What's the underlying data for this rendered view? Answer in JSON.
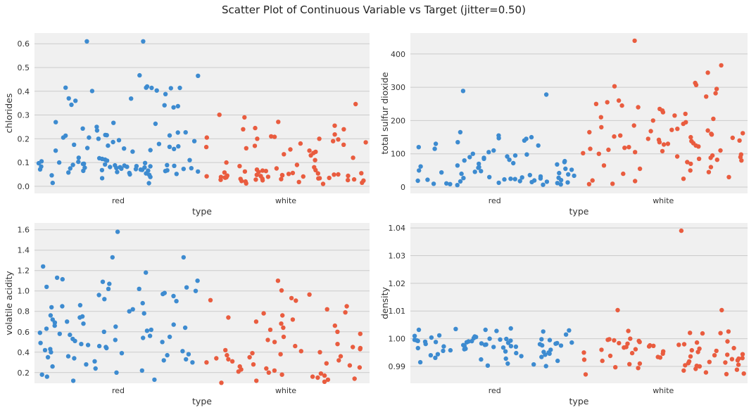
{
  "chart_data": [
    {
      "type": "scatter",
      "title": "Scatter Plot of Continuous Variable vs Target (jitter=0.50)",
      "xlabel": "type",
      "ylabel": "chlorides",
      "categories": [
        "red",
        "white"
      ],
      "ylim": [
        -0.03,
        0.645
      ],
      "yticks": [
        0.0,
        0.1,
        0.2,
        0.3,
        0.4,
        0.5,
        0.6
      ],
      "ytick_labels": [
        "0.0",
        "0.1",
        "0.2",
        "0.3",
        "0.4",
        "0.5",
        "0.6"
      ],
      "grid": true,
      "jitter": 0.5,
      "series": [
        {
          "category": "red",
          "color": "#3d8bd0",
          "values": [
            0.61,
            0.61,
            0.467,
            0.465,
            0.42,
            0.415,
            0.415,
            0.414,
            0.414,
            0.413,
            0.403,
            0.401,
            0.388,
            0.37,
            0.369,
            0.36,
            0.343,
            0.341,
            0.337,
            0.332,
            0.27,
            0.267,
            0.263,
            0.25,
            0.243,
            0.235,
            0.227,
            0.226,
            0.216,
            0.215,
            0.214,
            0.213,
            0.205,
            0.205,
            0.2,
            0.194,
            0.19,
            0.186,
            0.178,
            0.175,
            0.171,
            0.168,
            0.166,
            0.161,
            0.159,
            0.157,
            0.152,
            0.15,
            0.146,
            0.014,
            0.013,
            0.034,
            0.039,
            0.12,
            0.118,
            0.115,
            0.112,
            0.11,
            0.108,
            0.105,
            0.103,
            0.1,
            0.098,
            0.097,
            0.095,
            0.094,
            0.092,
            0.09,
            0.089,
            0.088,
            0.087,
            0.086,
            0.085,
            0.084,
            0.083,
            0.082,
            0.081,
            0.08,
            0.079,
            0.078,
            0.077,
            0.076,
            0.075,
            0.074,
            0.073,
            0.072,
            0.071,
            0.07,
            0.069,
            0.068,
            0.067,
            0.066,
            0.065,
            0.064,
            0.062,
            0.06,
            0.058,
            0.056,
            0.054,
            0.052,
            0.05,
            0.048,
            0.046
          ]
        },
        {
          "category": "white",
          "color": "#e95c3f",
          "values": [
            0.346,
            0.301,
            0.29,
            0.271,
            0.255,
            0.245,
            0.24,
            0.24,
            0.218,
            0.21,
            0.208,
            0.205,
            0.2,
            0.2,
            0.197,
            0.19,
            0.185,
            0.18,
            0.175,
            0.17,
            0.165,
            0.16,
            0.155,
            0.15,
            0.145,
            0.14,
            0.135,
            0.13,
            0.12,
            0.11,
            0.1,
            0.09,
            0.085,
            0.08,
            0.075,
            0.07,
            0.068,
            0.066,
            0.064,
            0.062,
            0.06,
            0.058,
            0.056,
            0.055,
            0.054,
            0.052,
            0.05,
            0.049,
            0.048,
            0.047,
            0.046,
            0.045,
            0.044,
            0.043,
            0.042,
            0.041,
            0.04,
            0.039,
            0.038,
            0.037,
            0.036,
            0.035,
            0.034,
            0.033,
            0.032,
            0.031,
            0.03,
            0.029,
            0.028,
            0.027,
            0.026,
            0.025,
            0.024,
            0.022,
            0.02,
            0.018,
            0.015,
            0.012,
            0.01
          ]
        }
      ]
    },
    {
      "type": "scatter",
      "xlabel": "type",
      "ylabel": "total sulfur dioxide",
      "categories": [
        "red",
        "white"
      ],
      "ylim": [
        -19,
        463
      ],
      "yticks": [
        0,
        100,
        200,
        300,
        400
      ],
      "ytick_labels": [
        "0",
        "100",
        "200",
        "300",
        "400"
      ],
      "grid": true,
      "jitter": 0.5,
      "series": [
        {
          "category": "red",
          "color": "#3d8bd0",
          "values": [
            289,
            278,
            165,
            155,
            150,
            147,
            145,
            140,
            135,
            130,
            125,
            120,
            115,
            110,
            105,
            100,
            98,
            95,
            92,
            90,
            88,
            85,
            82,
            80,
            78,
            75,
            72,
            70,
            68,
            65,
            62,
            60,
            58,
            55,
            52,
            50,
            48,
            46,
            44,
            42,
            40,
            38,
            36,
            34,
            32,
            30,
            29,
            28,
            27,
            26,
            25,
            24,
            23,
            22,
            21,
            20,
            19,
            18,
            17,
            16,
            15,
            14,
            13,
            12,
            11,
            10,
            9,
            8,
            7,
            6
          ]
        },
        {
          "category": "white",
          "color": "#e95c3f",
          "values": [
            440,
            366,
            344,
            313,
            307,
            303,
            295,
            282,
            272,
            260,
            255,
            250,
            245,
            240,
            235,
            230,
            20,
            18,
            25,
            30,
            10,
            9,
            40,
            45,
            225,
            220,
            215,
            210,
            205,
            200,
            195,
            190,
            185,
            180,
            175,
            172,
            170,
            168,
            165,
            162,
            160,
            158,
            155,
            152,
            150,
            148,
            145,
            142,
            140,
            138,
            135,
            132,
            130,
            128,
            125,
            122,
            120,
            118,
            115,
            112,
            110,
            108,
            105,
            102,
            100,
            98,
            95,
            92,
            90,
            88,
            85,
            82,
            80,
            75,
            70,
            65,
            60,
            55,
            50
          ]
        }
      ]
    },
    {
      "type": "scatter",
      "xlabel": "type",
      "ylabel": "volatile acidity",
      "categories": [
        "red",
        "white"
      ],
      "ylim": [
        0.095,
        1.667
      ],
      "yticks": [
        0.2,
        0.4,
        0.6,
        0.8,
        1.0,
        1.2,
        1.4,
        1.6
      ],
      "ytick_labels": [
        "0.2",
        "0.4",
        "0.6",
        "0.8",
        "1.0",
        "1.2",
        "1.4",
        "1.6"
      ],
      "grid": true,
      "jitter": 0.5,
      "series": [
        {
          "category": "red",
          "color": "#3d8bd0",
          "values": [
            1.58,
            1.33,
            1.33,
            1.24,
            1.18,
            1.13,
            1.115,
            1.1,
            1.09,
            1.07,
            1.04,
            1.035,
            1.02,
            1.02,
            1.0,
            0.98,
            0.97,
            0.96,
            0.12,
            0.13,
            0.16,
            0.18,
            0.95,
            0.92,
            0.9,
            0.88,
            0.86,
            0.85,
            0.84,
            0.82,
            0.8,
            0.78,
            0.76,
            0.75,
            0.74,
            0.72,
            0.7,
            0.69,
            0.68,
            0.67,
            0.66,
            0.65,
            0.64,
            0.63,
            0.62,
            0.61,
            0.6,
            0.59,
            0.58,
            0.57,
            0.56,
            0.55,
            0.54,
            0.53,
            0.52,
            0.51,
            0.5,
            0.49,
            0.48,
            0.47,
            0.46,
            0.45,
            0.44,
            0.43,
            0.42,
            0.41,
            0.4,
            0.39,
            0.38,
            0.37,
            0.36,
            0.35,
            0.34,
            0.33,
            0.32,
            0.31,
            0.3,
            0.28,
            0.26,
            0.24,
            0.22,
            0.2
          ]
        },
        {
          "category": "white",
          "color": "#e95c3f",
          "values": [
            1.1,
            1.005,
            0.965,
            0.93,
            0.91,
            0.905,
            0.85,
            0.82,
            0.79,
            0.78,
            0.76,
            0.74,
            0.72,
            0.7,
            0.68,
            0.66,
            0.64,
            0.62,
            0.6,
            0.58,
            0.55,
            0.52,
            0.5,
            0.48,
            0.46,
            0.45,
            0.44,
            0.43,
            0.42,
            0.41,
            0.4,
            0.39,
            0.38,
            0.37,
            0.36,
            0.35,
            0.34,
            0.33,
            0.32,
            0.31,
            0.3,
            0.29,
            0.28,
            0.27,
            0.26,
            0.25,
            0.24,
            0.23,
            0.22,
            0.21,
            0.2,
            0.19,
            0.18,
            0.17,
            0.16,
            0.15,
            0.14,
            0.13,
            0.12,
            0.11,
            0.1
          ]
        }
      ]
    },
    {
      "type": "scatter",
      "xlabel": "type",
      "ylabel": "density",
      "categories": [
        "red",
        "white"
      ],
      "ylim": [
        0.9839,
        1.0418
      ],
      "yticks": [
        0.99,
        1.0,
        1.01,
        1.02,
        1.03,
        1.04
      ],
      "ytick_labels": [
        "0.99",
        "1.00",
        "1.01",
        "1.02",
        "1.03",
        "1.04"
      ],
      "grid": true,
      "jitter": 0.5,
      "series": [
        {
          "category": "red",
          "color": "#3d8bd0",
          "values": [
            1.0037,
            1.0035,
            1.0032,
            1.0032,
            1.003,
            1.0028,
            1.0026,
            0.9901,
            0.9903,
            0.9907,
            0.991,
            0.9915,
            1.0015,
            1.0012,
            1.001,
            1.0008,
            1.0006,
            1.0004,
            1.0002,
            1.0,
            0.9999,
            0.9998,
            0.9997,
            0.9996,
            0.9995,
            0.9994,
            0.9993,
            0.9992,
            0.9991,
            0.999,
            0.9989,
            0.9988,
            0.9987,
            0.9986,
            0.9985,
            0.9984,
            0.9983,
            0.9982,
            0.9981,
            0.998,
            0.9979,
            0.9978,
            0.9977,
            0.9976,
            0.9975,
            0.9974,
            0.9973,
            0.9972,
            0.9971,
            0.997,
            0.9968,
            0.9966,
            0.9964,
            0.9962,
            0.996,
            0.9958,
            0.9956,
            0.9954,
            0.9952,
            0.995,
            0.9948,
            0.9946,
            0.9944,
            0.9942,
            0.994,
            0.9937,
            0.9934,
            0.9931,
            0.9928,
            0.9925,
            0.992
          ]
        },
        {
          "category": "white",
          "color": "#e95c3f",
          "values": [
            1.03898,
            1.0103,
            1.0103,
            1.0028,
            1.0026,
            1.0021,
            1.002,
            1.0019,
            0.9871,
            0.9872,
            0.9874,
            0.9878,
            1.0,
            0.9998,
            0.9996,
            0.9994,
            0.9992,
            0.999,
            0.9988,
            0.9986,
            0.9984,
            0.9982,
            0.998,
            0.9978,
            0.9976,
            0.9974,
            0.9972,
            0.997,
            0.9968,
            0.9966,
            0.9964,
            0.9962,
            0.996,
            0.9958,
            0.9956,
            0.9954,
            0.9952,
            0.995,
            0.9948,
            0.9946,
            0.9944,
            0.9942,
            0.994,
            0.9938,
            0.9936,
            0.9934,
            0.9932,
            0.993,
            0.9928,
            0.9926,
            0.9924,
            0.9922,
            0.992,
            0.9918,
            0.9916,
            0.9914,
            0.9912,
            0.991,
            0.9908,
            0.9906,
            0.9904,
            0.9902,
            0.99,
            0.9897,
            0.9894,
            0.9891,
            0.9888,
            0.9885
          ]
        }
      ]
    }
  ]
}
